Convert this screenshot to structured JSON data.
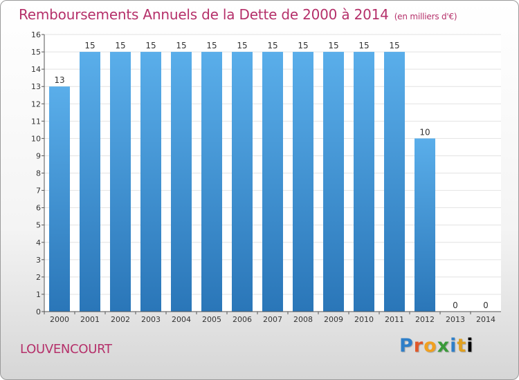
{
  "header": {
    "title": "Remboursements Annuels de la Dette de 2000 à 2014",
    "subtitle": "(en milliers d'€)"
  },
  "footer": {
    "town": "LOUVENCOURT",
    "logo_letters": [
      "P",
      "r",
      "o",
      "x",
      "i",
      "t",
      "i"
    ]
  },
  "colors": {
    "bar_top": "#5aaeea",
    "bar_bottom": "#2a76b8",
    "title": "#b5306a",
    "grid": "#e2e2e2"
  },
  "chart_data": {
    "type": "bar",
    "categories": [
      "2000",
      "2001",
      "2002",
      "2003",
      "2004",
      "2005",
      "2006",
      "2007",
      "2008",
      "2009",
      "2010",
      "2011",
      "2012",
      "2013",
      "2014"
    ],
    "values": [
      13,
      15,
      15,
      15,
      15,
      15,
      15,
      15,
      15,
      15,
      15,
      15,
      10,
      0,
      0
    ],
    "data_labels": [
      "13",
      "15",
      "15",
      "15",
      "15",
      "15",
      "15",
      "15",
      "15",
      "15",
      "15",
      "15",
      "10",
      "0",
      "0"
    ],
    "yticks": [
      "0",
      "1",
      "2",
      "3",
      "4",
      "5",
      "6",
      "7",
      "8",
      "9",
      "10",
      "11",
      "12",
      "13",
      "14",
      "15",
      "16"
    ],
    "ylim": [
      0,
      16
    ],
    "grid": true,
    "legend": "none"
  }
}
